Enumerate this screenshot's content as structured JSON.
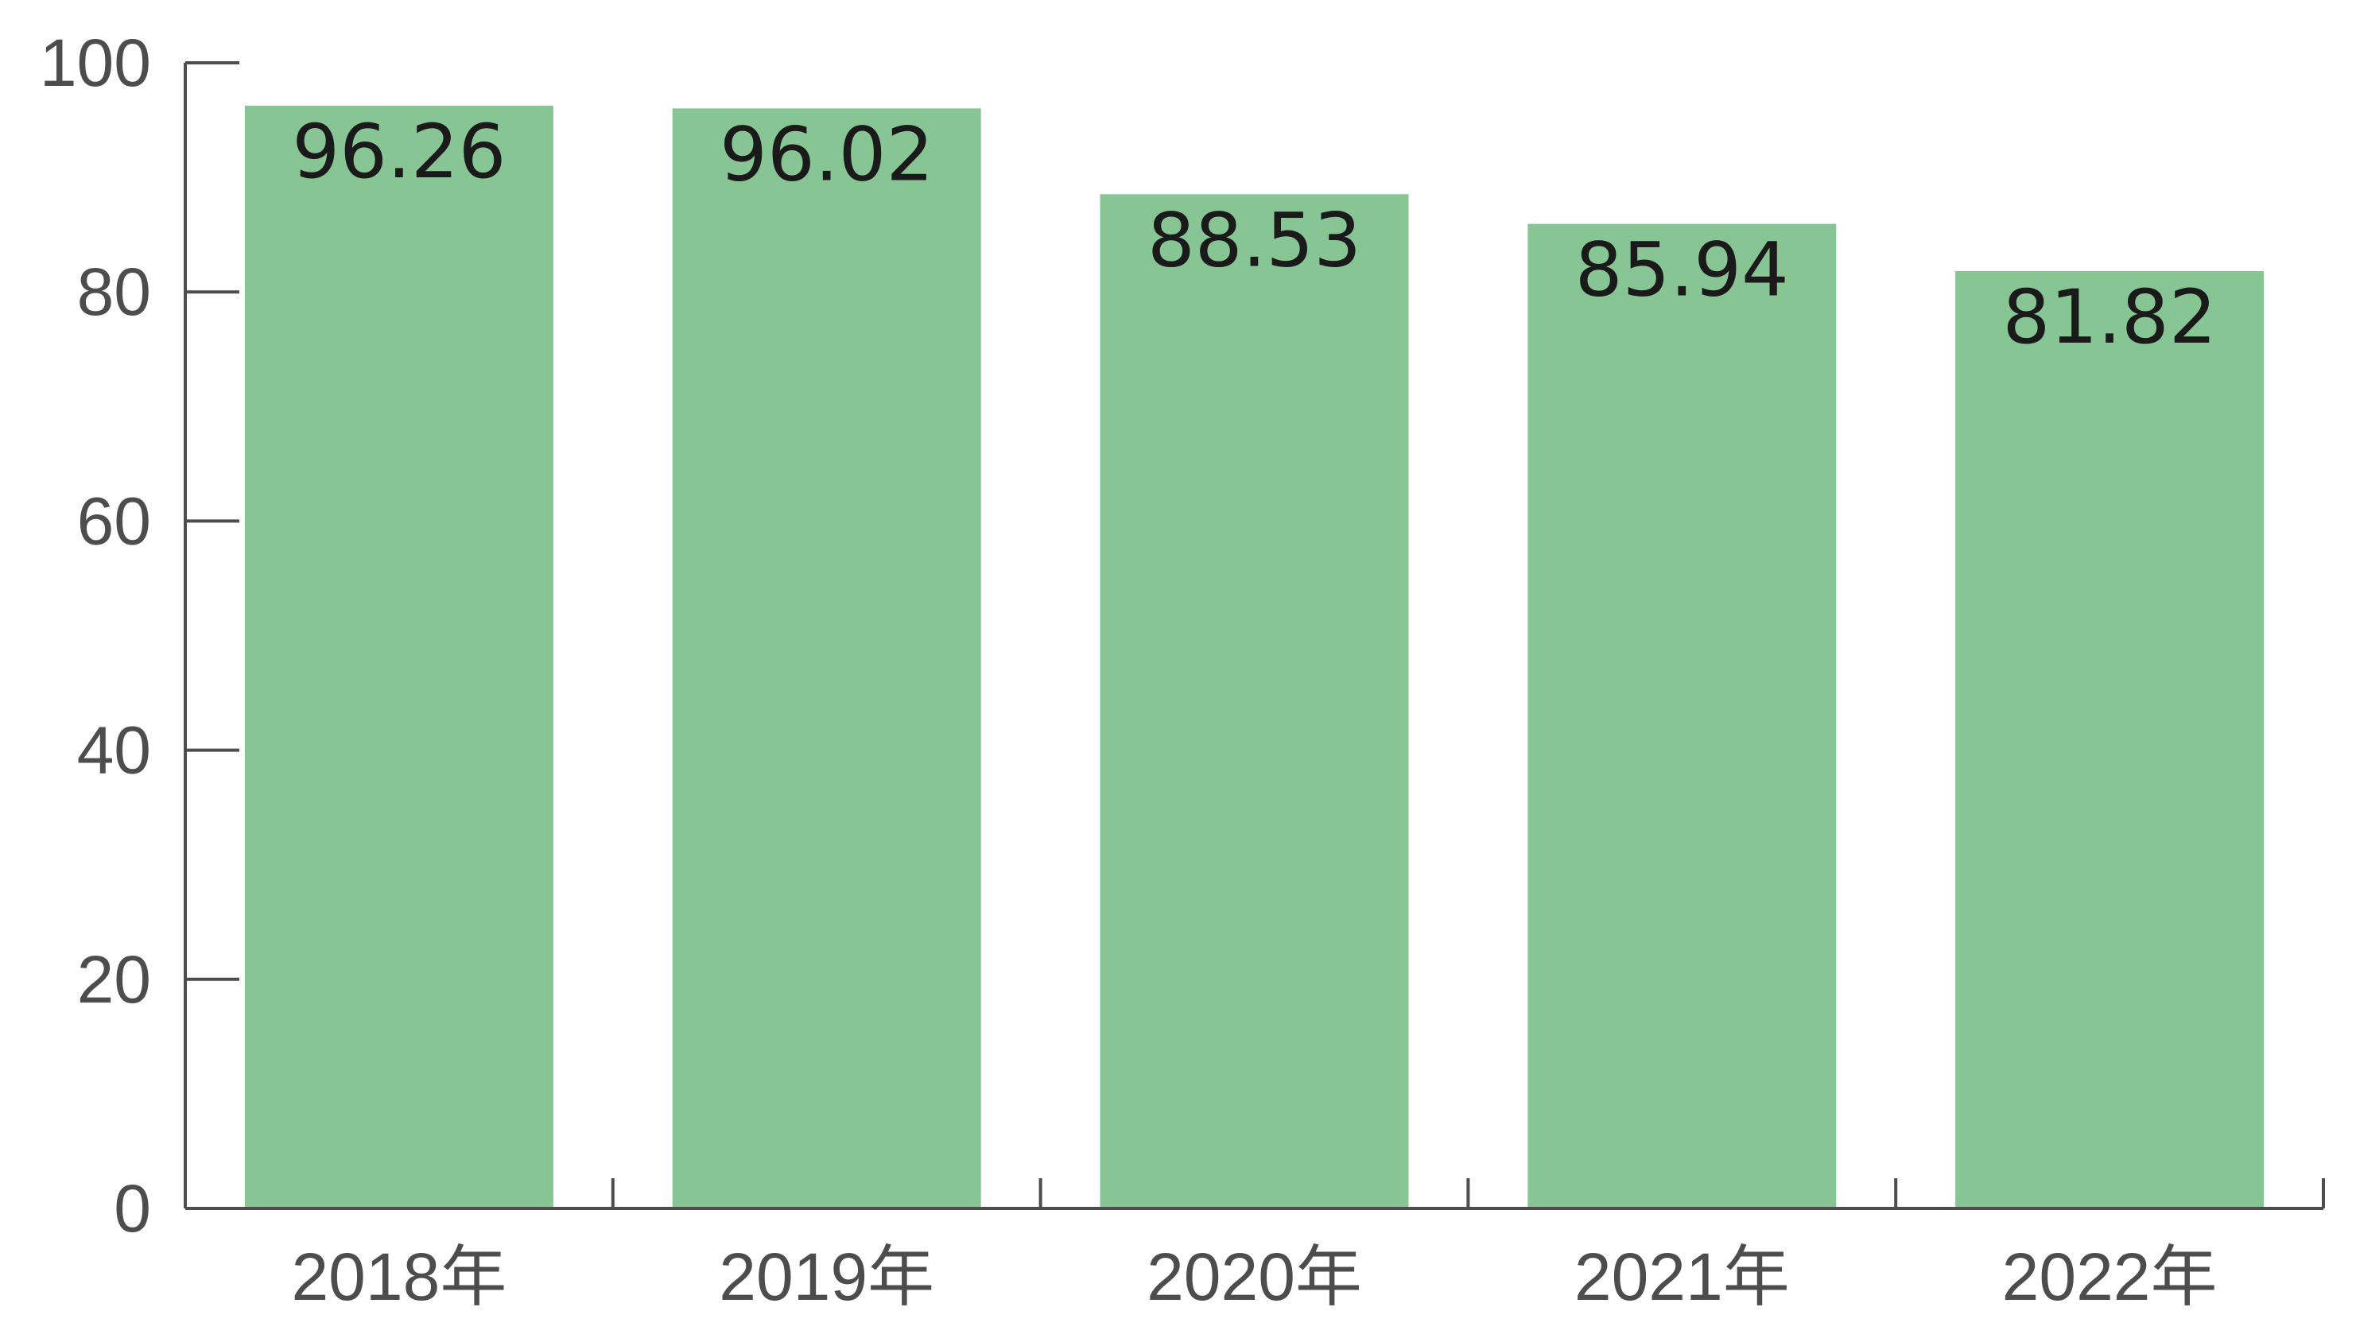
{
  "chart_data": {
    "type": "bar",
    "categories": [
      "2018年",
      "2019年",
      "2020年",
      "2021年",
      "2022年"
    ],
    "values": [
      96.26,
      96.02,
      88.53,
      85.94,
      81.82
    ],
    "data_labels": [
      "96.26",
      "96.02",
      "88.53",
      "85.94",
      "81.82"
    ],
    "y_ticks": [
      "0",
      "20",
      "40",
      "60",
      "80",
      "100"
    ],
    "y_tick_values": [
      0,
      20,
      40,
      60,
      80,
      100
    ],
    "ylim": [
      0,
      100
    ],
    "title": "",
    "xlabel": "",
    "ylabel": "",
    "grid": false,
    "legend": "none",
    "colors": {
      "bar": "#87c595",
      "axis": "#4d4d4d",
      "tick_text": "#4d4d4d",
      "data_label_text": "#1a1a1a"
    }
  }
}
